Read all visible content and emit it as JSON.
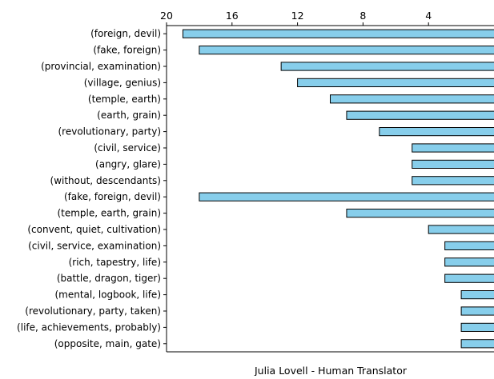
{
  "chart_data": {
    "type": "bar",
    "orientation": "horizontal",
    "x_axis_inverted": true,
    "x_ticks_position": "top",
    "title": "",
    "xlabel": "Julia Lovell - Human Translator",
    "ylabel": "",
    "xlim": [
      0,
      20
    ],
    "x_ticks": [
      "20",
      "16",
      "12",
      "8",
      "4"
    ],
    "x_tick_values": [
      20,
      16,
      12,
      8,
      4
    ],
    "grid": false,
    "bar_color": "#87CEEB",
    "edge_color": "#000000",
    "categories": [
      "(foreign, devil)",
      "(fake, foreign)",
      "(provincial, examination)",
      "(village, genius)",
      "(temple, earth)",
      "(earth, grain)",
      "(revolutionary, party)",
      "(civil, service)",
      "(angry, glare)",
      "(without, descendants)",
      "(fake, foreign, devil)",
      "(temple, earth, grain)",
      "(convent, quiet, cultivation)",
      "(civil, service, examination)",
      "(rich, tapestry, life)",
      "(battle, dragon, tiger)",
      "(mental, logbook, life)",
      "(revolutionary, party, taken)",
      "(life, achievements, probably)",
      "(opposite, main, gate)"
    ],
    "values": [
      19,
      18,
      13,
      12,
      10,
      9,
      7,
      5,
      5,
      5,
      18,
      9,
      4,
      3,
      3,
      3,
      2,
      2,
      2,
      2
    ]
  }
}
